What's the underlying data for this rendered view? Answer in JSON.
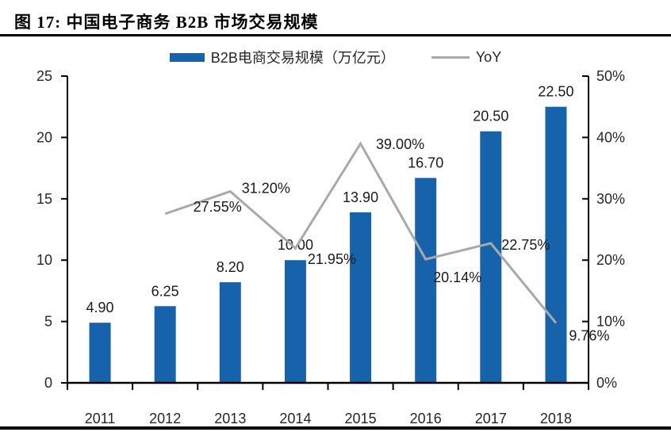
{
  "title": "图 17:  中国电子商务 B2B 市场交易规模",
  "legend": {
    "bar_label": "B2B电商交易规模（万亿元）",
    "line_label": "YoY"
  },
  "colors": {
    "bar": "#1663AC",
    "line": "#A9A9A9",
    "axis": "#000000",
    "tick_text": "#262626",
    "data_label_text": "#1A1A1A"
  },
  "chart_data": {
    "type": "bar+line",
    "title": "图 17: 中国电子商务 B2B 市场交易规模",
    "categories": [
      "2011",
      "2012",
      "2013",
      "2014",
      "2015",
      "2016",
      "2017",
      "2018"
    ],
    "series": [
      {
        "name": "B2B电商交易规模（万亿元）",
        "type": "bar",
        "axis": "left",
        "color": "#1663AC",
        "values": [
          4.9,
          6.25,
          8.2,
          10.0,
          13.9,
          16.7,
          20.5,
          22.5
        ],
        "labels": [
          "4.90",
          "6.25",
          "8.20",
          "10.00",
          "13.90",
          "16.70",
          "20.50",
          "22.50"
        ]
      },
      {
        "name": "YoY",
        "type": "line",
        "axis": "right",
        "color": "#A9A9A9",
        "values": [
          null,
          27.55,
          31.2,
          21.95,
          39.0,
          20.14,
          22.75,
          9.76
        ],
        "labels": [
          null,
          "27.55%",
          "31.20%",
          "21.95%",
          "39.00%",
          "20.14%",
          "22.75%",
          "9.76%"
        ],
        "label_offsets": [
          null,
          [
            66,
            -3
          ],
          [
            45,
            2
          ],
          [
            46,
            20
          ],
          [
            50,
            7
          ],
          [
            40,
            29
          ],
          [
            44,
            8
          ],
          [
            42,
            22
          ]
        ]
      }
    ],
    "left_axis": {
      "min": 0,
      "max": 25,
      "tick_values": [
        0,
        5,
        10,
        15,
        20,
        25
      ],
      "tick_labels": [
        "0",
        "5",
        "10",
        "15",
        "20",
        "25"
      ]
    },
    "right_axis": {
      "min": 0,
      "max": 50,
      "tick_values": [
        0,
        10,
        20,
        30,
        40,
        50
      ],
      "tick_labels": [
        "0%",
        "10%",
        "20%",
        "30%",
        "40%",
        "50%"
      ]
    },
    "grid": false,
    "legend_position": "top"
  }
}
